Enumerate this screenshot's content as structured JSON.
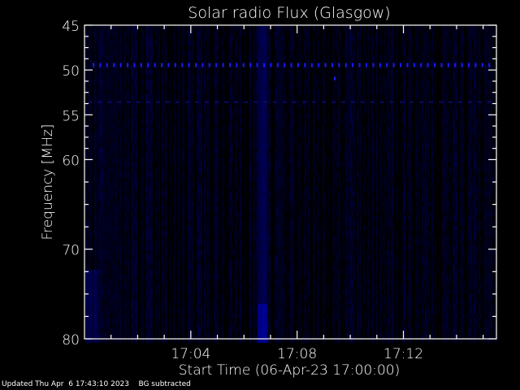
{
  "chart_data": {
    "type": "heatmap",
    "title": "Solar radio Flux (Glasgow)",
    "xlabel": "Start Time (06-Apr-23 17:00:00)",
    "ylabel": "Frequency [MHz]",
    "x_range": [
      "17:00",
      "17:15.5"
    ],
    "y_range": [
      45,
      80
    ],
    "y_inverted": true,
    "x_ticks": [
      "17:04",
      "17:08",
      "17:12"
    ],
    "y_ticks": [
      "45",
      "50",
      "55",
      "60",
      "70",
      "80"
    ],
    "colormap": "black to blue",
    "features": [
      {
        "description": "periodic narrowband interference",
        "frequency_mhz": 49.5
      },
      {
        "description": "weak band",
        "frequency_mhz": 53.5
      }
    ],
    "grid": false
  },
  "footer": {
    "updated": "Updated Thu Apr  6 17:43:10 2023",
    "bg": "BG subtracted"
  },
  "colors": {
    "background": "#000000",
    "signal": "#0000ff",
    "axes": "#ffffff"
  }
}
